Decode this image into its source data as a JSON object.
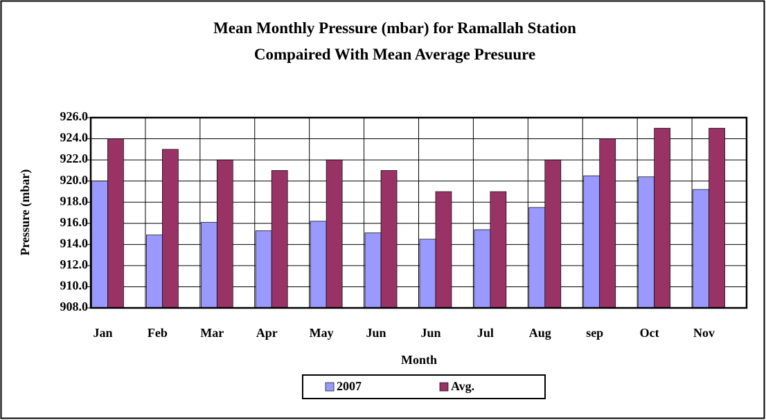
{
  "chart_data": {
    "type": "bar",
    "title": "Mean Monthly Pressure (mbar) for Ramallah Station Compaired With Mean Average Presuure",
    "x_label": "Month",
    "y_label": "Pressure (mbar)",
    "categories": [
      "Jan",
      "Feb",
      "Mar",
      "Apr",
      "May",
      "Jun",
      "Jun",
      "Jul",
      "Aug",
      "sep",
      "Oct",
      "Nov"
    ],
    "series": [
      {
        "name": "2007",
        "color": "#9999ff",
        "values": [
          920.0,
          914.9,
          916.1,
          915.3,
          916.2,
          915.1,
          914.5,
          915.4,
          917.5,
          920.5,
          920.4,
          919.2
        ]
      },
      {
        "name": "Avg.",
        "color": "#993366",
        "values": [
          924,
          923,
          922,
          921,
          922,
          921,
          919,
          919,
          922,
          924,
          925,
          925
        ]
      }
    ],
    "ylim": [
      908,
      926
    ],
    "yticks": [
      {
        "value": 908,
        "label": "908.0"
      },
      {
        "value": 910,
        "label": "910.0"
      },
      {
        "value": 912,
        "label": "912.0"
      },
      {
        "value": 914,
        "label": "914.0"
      },
      {
        "value": 916,
        "label": "916.0"
      },
      {
        "value": 918,
        "label": "918.0"
      },
      {
        "value": 920,
        "label": "920.0"
      },
      {
        "value": 922,
        "label": "922.0"
      },
      {
        "value": 924,
        "label": "924.0"
      },
      {
        "value": 926,
        "label": "926.0"
      }
    ],
    "grid": true,
    "legend": "bottom"
  }
}
